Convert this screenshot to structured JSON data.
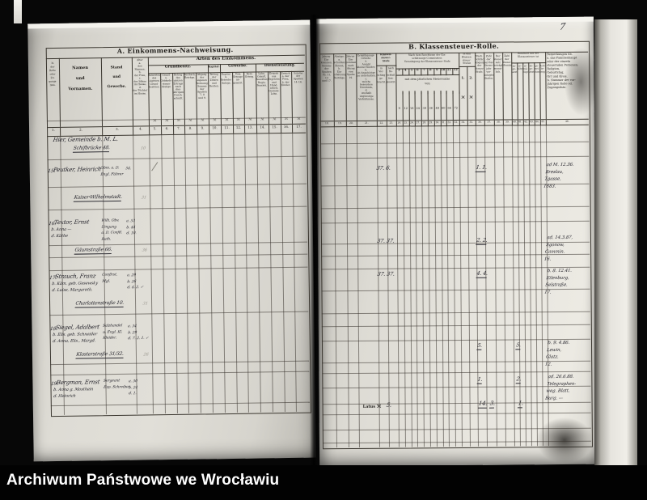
{
  "footer": {
    "archive_label": "Archiwum Państwowe we Wrocławiu"
  },
  "left_page": {
    "title": "A. Einkommens-Nachweisung.",
    "arten_header": "Arten des Einkommens.",
    "col1_vertical": "№\nder\nRolle\noder\nZu-\ngangs-\nliste.",
    "col_namen": "Namen\nund\nVornamen.",
    "col_stand": "Stand\nund\nGewerbe.",
    "col_alter": "Alter\na.\ndes\nMannes,\nb.\nder Frau,\nc.\nder Söhne\nim Hause,\nd.\nder Töchter\nim Hause.",
    "groups": [
      "Grundbesitz.",
      "Kapital.",
      "Gewerbe.",
      "Dienstleistung."
    ],
    "subheads": [
      "Reinertrag\ndes\neigenen\nGrund-\nbesitzes.",
      "Grund-\nu. Gebäude-\nsteuer\nAbzüge.",
      "Betrag\ndes\nganzen\nErtrags\nnach drei-\njährigem\nDurch-\nschnitt.",
      "Wirthsch.-\nBeträge.",
      "Abgang\nder\neigenen\nWohnung.\nSumme\nder\nSpalten\n7, 8\nund 9.",
      "Betrag\nder\nZinsen\nund\nRenten.",
      "Kapital-\nu.\nBetriebs-\nAnlage.",
      "Vom\nErtrage\nab-\ngesetzt.",
      "Rein-\nErtrag.",
      "Lohn,\nGehalt,\nBesoldung,\nRegie,\nPension.",
      "Erwerb\naus\nTagelohn\nund\nHand-\narbeit,\nGesinde-\nLohn.",
      "Erwerb\na. der\nFrau,\nb. der\nKinder.",
      "Summe\nder\nSpalten\n14–16."
    ],
    "currency_mark": "ℳ",
    "col_numbers": [
      "1.",
      "2.",
      "3.",
      "4.",
      "5.",
      "6.",
      "7.",
      "8.",
      "9.",
      "10.",
      "11.",
      "12.",
      "13.",
      "14.",
      "15.",
      "16.",
      "17."
    ]
  },
  "right_page": {
    "page_number": "7",
    "title": "B. Klassensteuer-Rolle.",
    "c18": "Jahres-\nEin-\nkommen.\nSumme\nder\nSpalten\n10, 11,\n13\nund 17.",
    "c19": "Abzüge:\na.\nSchulden-\nZinsen,\nb.\nEin-\nschätzungs-\nBeiträge.",
    "c20": "Jahres-\nEin-\nkommen\nnach\nAbzug\nvon\nSpalte\n19.",
    "c21": "Ermäßigungs-\nGründe:\na.\nAnzahl\nkleiner Kinder,\nb.\nob Angehörige\nzu unterhalten,\nc.\nwelche besondere\nUmstände,\nd.\nweshalb\nungünstige\nVerhältnisse.",
    "g22": "Klassen-\nsteuer-\nStufe",
    "s22": "in\nVor-\nschlag\nge-\nbracht.",
    "s23": "nach\nBe-\nschluß\nfest-\ngesetzt.",
    "g24": "Nach dem Beschlusse der Ein-\nschätzungs-Commission:\nVeranlagung der Klassensteuer-Stufe",
    "mid24": "mit dem jährlichen Steuersatze\nvon",
    "stufen_digits": [
      "3",
      "4",
      "5",
      "6",
      "7",
      "8",
      "9",
      "10",
      "11",
      "12"
    ],
    "satz_digits": [
      "9",
      "12",
      "18",
      "24",
      "30",
      "36",
      "48",
      "60",
      "66",
      "72"
    ],
    "g34": "In den\nKlassen-\nsteuer-\nStufen",
    "s34": "1.\nℳ",
    "s35": "2.\nℳ",
    "c36": "Nach-\nrichtlich\nAbgang\nder\nSteuer-\nStufe.",
    "c37": "Zahl\nder\nauf das\nSteuer-\njahr ver-\nanlagten\nStufen.",
    "c38": "Der\nSteuer-\nsatz\nbeträgt\nmonat-\nlich.",
    "c39": "Zahl\nder\nSteuer-\nMonate.",
    "g40": "Bescheid aus der\nKlassensteuer ist",
    "bescheid_subs": [
      "zu-\nge-\nsetzt",
      "er-\nhöht",
      "er-\nmä-\nßigt",
      "ab-\nge-\nsetzt",
      "ge-\nstri-\nchen",
      "Rest-\nbe-\ntrag"
    ],
    "c46": "Bemerkungen üb.\na. das Familienhaupt\noder der einzeln\nsteuernden Personen:\nReligion,\nGeburtstag,\nOrt und Kreis.\nb. Nummer der vor-\njährigen Rolle od.\nZugangsliste.",
    "col_numbers": [
      "18.",
      "19.",
      "20.",
      "21.",
      "22.",
      "23.",
      "24.",
      "25.",
      "26.",
      "27.",
      "28.",
      "29.",
      "30.",
      "31.",
      "32.",
      "33.",
      "34.",
      "35.",
      "36.",
      "37.",
      "38.",
      "39.",
      "40.",
      "41.",
      "42.",
      "43.",
      "44.",
      "45.",
      "46."
    ],
    "latus": {
      "label": "Latus ℳ",
      "value": "5.",
      "sum_a": "14.",
      "sum_b": "3.",
      "sum_c": "1."
    }
  },
  "entries": [
    {
      "no": "",
      "name_lines": [
        "Hier, Gemeinde b. M. L."
      ],
      "stand_lines": [],
      "age_lines": [],
      "address": "Schifbrücke 48.",
      "faint": "10",
      "stufe": "",
      "zahl": "",
      "bescheid": "",
      "remarks": []
    },
    {
      "no": "15.",
      "name_lines": [
        "Peutker, Heinrich"
      ],
      "stand_lines": [
        "Obm. a. D.",
        "Engl. Führer"
      ],
      "age_lines": [
        "54."
      ],
      "address": "Kaiser-Wilhelmstadt.",
      "faint": "31",
      "stufe": "37. 6.",
      "zahl": "1. 1.",
      "bescheid": "",
      "remarks": [
        "ad M. 12.36.",
        "Breslau,",
        "Tgasse,",
        "1883."
      ]
    },
    {
      "no": "16.",
      "name_lines": [
        "Textor, Ernst",
        "b. Anna —",
        "d. Käthe"
      ],
      "stand_lines": [
        "Wilh. Obv.",
        "Umgang",
        "a. D. Confd.",
        "Rath."
      ],
      "age_lines": [
        "a. 53",
        "b. 44",
        "d. 10."
      ],
      "address": "Gäumstraße 66.",
      "faint": "36",
      "stufe": "37. 37.",
      "zahl": "2. 2.",
      "bescheid": "",
      "remarks": [
        "ad. 14.3.87,",
        "Sgonow,",
        "Cammin.",
        "16."
      ]
    },
    {
      "no": "17.",
      "name_lines": [
        "Strauch, Franz",
        "b. Käm. geb. Gesewsky",
        "d. Luise, Margareth."
      ],
      "stand_lines": [
        "Confirst.",
        "Mgl."
      ],
      "age_lines": [
        "a. 29",
        "b. 26",
        "d. 4. 2. ✓"
      ],
      "address": "Charlottenstraße 10.",
      "faint": "31",
      "stufe": "37. 37.",
      "zahl": "4. 4.",
      "bescheid": "",
      "remarks": [
        "b. 8. 12.41.",
        "Eilenburg,",
        "Selstraße.",
        "17."
      ]
    },
    {
      "no": "18.",
      "name_lines": [
        "Siegel, Adalbert",
        "b. Elis. geb. Schneider",
        "d. Anna, Elis., Margd."
      ],
      "stand_lines": [
        "Salzhandel",
        "u. Engl. Kl.",
        "Kleider."
      ],
      "age_lines": [
        "a. 34",
        "b. 29",
        "d. 7. 2. 1. ✓"
      ],
      "address": "Klosterstraße 31/32.",
      "faint": "26",
      "stufe": "",
      "zahl": "5.",
      "bescheid": "5.",
      "remarks": [
        "b. 9. 4.86.",
        "Lewin,",
        "Glatz.",
        "12."
      ]
    },
    {
      "no": "19.",
      "name_lines": [
        "Bergman, Ernst",
        "b. Anna g. Mosthein",
        "d. Heinrich"
      ],
      "stand_lines": [
        "Sergeant",
        "Exp. Schreiber"
      ],
      "age_lines": [
        "a. 30",
        "b. 24",
        "d. 1."
      ],
      "address": "",
      "faint": "",
      "stufe": "",
      "zahl": "1.",
      "bescheid": "2.",
      "remarks": [
        "ad. 26.6.88.",
        "Telegraphen-",
        "weg. Blatt,",
        "Burg. —"
      ]
    }
  ]
}
